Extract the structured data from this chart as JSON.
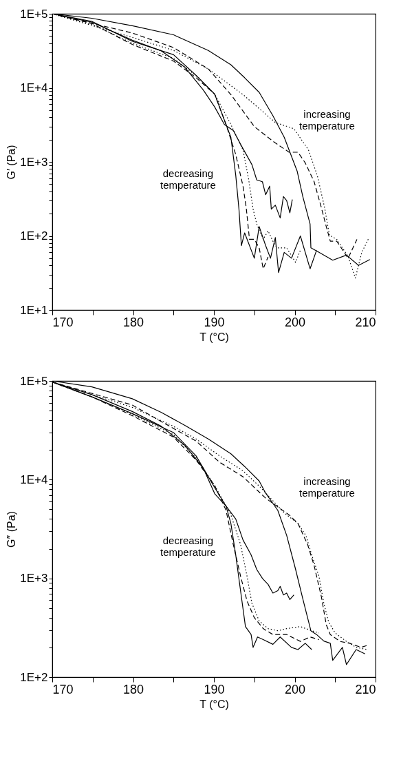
{
  "chart_data": [
    {
      "type": "line",
      "xlabel": "T (°C)",
      "ylabel": "G′ (Pa)",
      "log": "y",
      "grid": false,
      "legend": false,
      "annotations": [
        "increasing temperature",
        "decreasing temperature"
      ],
      "xlim": [
        170,
        210
      ],
      "xticks": [
        170,
        {
          "value": 175,
          "label": null
        },
        180,
        {
          "value": 185,
          "label": null
        },
        190,
        {
          "value": 195,
          "label": null
        },
        200,
        {
          "value": 205,
          "label": null
        },
        210
      ],
      "ylim": [
        10,
        100000
      ],
      "yticks": [
        {
          "value": 10,
          "label": "1E+1"
        },
        {
          "value": 20,
          "label": null
        },
        {
          "value": 30,
          "label": null
        },
        {
          "value": 40,
          "label": null
        },
        {
          "value": 50,
          "label": null
        },
        {
          "value": 60,
          "label": null
        },
        {
          "value": 70,
          "label": null
        },
        {
          "value": 80,
          "label": null
        },
        {
          "value": 90,
          "label": null
        },
        {
          "value": 100,
          "label": "1E+2"
        },
        {
          "value": 200,
          "label": null
        },
        {
          "value": 300,
          "label": null
        },
        {
          "value": 400,
          "label": null
        },
        {
          "value": 500,
          "label": null
        },
        {
          "value": 600,
          "label": null
        },
        {
          "value": 700,
          "label": null
        },
        {
          "value": 800,
          "label": null
        },
        {
          "value": 900,
          "label": null
        },
        {
          "value": 1000,
          "label": "1E+3"
        },
        {
          "value": 2000,
          "label": null
        },
        {
          "value": 3000,
          "label": null
        },
        {
          "value": 4000,
          "label": null
        },
        {
          "value": 5000,
          "label": null
        },
        {
          "value": 6000,
          "label": null
        },
        {
          "value": 7000,
          "label": null
        },
        {
          "value": 8000,
          "label": null
        },
        {
          "value": 9000,
          "label": null
        },
        {
          "value": 10000,
          "label": "1E+4"
        },
        {
          "value": 20000,
          "label": null
        },
        {
          "value": 30000,
          "label": null
        },
        {
          "value": 40000,
          "label": null
        },
        {
          "value": 50000,
          "label": null
        },
        {
          "value": 60000,
          "label": null
        },
        {
          "value": 70000,
          "label": null
        },
        {
          "value": 80000,
          "label": null
        },
        {
          "value": 90000,
          "label": null
        },
        {
          "value": 100000,
          "label": "1E+5"
        }
      ],
      "series": [
        {
          "color": "#000000",
          "line_style": "solid",
          "x": [
            170,
            174.9,
            179.9,
            185,
            189.3,
            192.1,
            193.8,
            195.6,
            197.3,
            198.7,
            200.3,
            201,
            201.9,
            202,
            203,
            204.7,
            206.4,
            207.9,
            209.3
          ],
          "values": [
            100000,
            87000,
            69000,
            52000,
            32000,
            20500,
            13700,
            8700,
            4200,
            2150,
            750,
            340,
            145,
            69,
            60,
            47,
            55,
            40,
            48
          ]
        },
        {
          "color": "#000000",
          "line_style": "dotted",
          "x": [
            170,
            179.9,
            185,
            189.3,
            193.6,
            197.6,
            199.9,
            201.7,
            202.8,
            203.7,
            204.3,
            205.2,
            206.6,
            207.5,
            208.3,
            209.2
          ],
          "values": [
            100000,
            48000,
            32000,
            18000,
            8100,
            3400,
            2800,
            1450,
            650,
            240,
            102,
            90,
            53,
            27,
            60,
            95
          ]
        },
        {
          "color": "#000000",
          "line_style": "dashed",
          "x": [
            170,
            179.9,
            185,
            189.3,
            192.1,
            195,
            197.3,
            199.3,
            200.4,
            201.3,
            202.4,
            203.3,
            203.9,
            204.4,
            205.2,
            206.6,
            207.7
          ],
          "values": [
            100000,
            55000,
            35000,
            18000,
            8100,
            3000,
            1900,
            1350,
            1350,
            970,
            540,
            240,
            134,
            85,
            85,
            50,
            90
          ]
        },
        {
          "color": "#000000",
          "line_style": "solid",
          "x": [
            170,
            174.9,
            179.9,
            183.5,
            186.4,
            188.7,
            190.1,
            191.3,
            192.4,
            193.4,
            194.7,
            195.3,
            196,
            196.4,
            196.9,
            197.1,
            197.6,
            198.2,
            198.6,
            199,
            199.4,
            199.7
          ],
          "values": [
            100000,
            77000,
            44000,
            31500,
            19000,
            9300,
            5500,
            3200,
            2650,
            1650,
            920,
            570,
            540,
            360,
            470,
            230,
            260,
            175,
            340,
            300,
            205,
            310
          ]
        },
        {
          "color": "#000000",
          "line_style": "solid",
          "x": [
            170,
            174.9,
            179.9,
            185,
            187.8,
            190.1,
            191.5,
            192.1,
            192.7,
            193.1,
            193.4,
            193.8,
            195,
            195.6,
            196.4,
            197,
            197.6,
            198,
            198.7,
            199.6,
            200.7,
            201.9,
            202.7
          ],
          "values": [
            100000,
            79000,
            42500,
            28000,
            14700,
            8200,
            3200,
            2150,
            660,
            230,
            74,
            110,
            50,
            134,
            74,
            50,
            95,
            32,
            60,
            50,
            100,
            36,
            64
          ]
        },
        {
          "color": "#000000",
          "line_style": "dashed",
          "x": [
            170,
            174.9,
            179.9,
            185,
            187.8,
            190.1,
            191.5,
            192.7,
            193.6,
            194,
            194.4,
            195,
            195.6,
            196.1,
            196.7
          ],
          "values": [
            100000,
            74000,
            38500,
            23000,
            13700,
            8200,
            3200,
            1260,
            470,
            240,
            90,
            90,
            69,
            36,
            52
          ]
        },
        {
          "color": "#000000",
          "line_style": "dotted",
          "x": [
            170,
            174.9,
            179.9,
            185,
            188.1,
            190.1,
            192.1,
            193.6,
            194.3,
            194.85,
            195.3,
            196.1,
            196.7,
            197.3,
            197.8,
            199,
            200.1,
            200.7
          ],
          "values": [
            100000,
            72000,
            40000,
            25000,
            13700,
            8200,
            3200,
            1450,
            580,
            230,
            145,
            90,
            117,
            85,
            69,
            69,
            44,
            64
          ]
        }
      ]
    },
    {
      "type": "line",
      "xlabel": "T (°C)",
      "ylabel": "G″ (Pa)",
      "log": "y",
      "grid": false,
      "legend": false,
      "annotations": [
        "increasing temperature",
        "decreasing temperature"
      ],
      "xlim": [
        170,
        210
      ],
      "xticks": [
        170,
        {
          "value": 175,
          "label": null
        },
        180,
        {
          "value": 185,
          "label": null
        },
        190,
        {
          "value": 195,
          "label": null
        },
        200,
        {
          "value": 205,
          "label": null
        },
        210
      ],
      "ylim": [
        100,
        100000
      ],
      "yticks": [
        {
          "value": 100,
          "label": "1E+2"
        },
        {
          "value": 200,
          "label": null
        },
        {
          "value": 300,
          "label": null
        },
        {
          "value": 400,
          "label": null
        },
        {
          "value": 500,
          "label": null
        },
        {
          "value": 600,
          "label": null
        },
        {
          "value": 700,
          "label": null
        },
        {
          "value": 800,
          "label": null
        },
        {
          "value": 900,
          "label": null
        },
        {
          "value": 1000,
          "label": "1E+3"
        },
        {
          "value": 2000,
          "label": null
        },
        {
          "value": 3000,
          "label": null
        },
        {
          "value": 4000,
          "label": null
        },
        {
          "value": 5000,
          "label": null
        },
        {
          "value": 6000,
          "label": null
        },
        {
          "value": 7000,
          "label": null
        },
        {
          "value": 8000,
          "label": null
        },
        {
          "value": 9000,
          "label": null
        },
        {
          "value": 10000,
          "label": "1E+4"
        },
        {
          "value": 20000,
          "label": null
        },
        {
          "value": 30000,
          "label": null
        },
        {
          "value": 40000,
          "label": null
        },
        {
          "value": 50000,
          "label": null
        },
        {
          "value": 60000,
          "label": null
        },
        {
          "value": 70000,
          "label": null
        },
        {
          "value": 80000,
          "label": null
        },
        {
          "value": 90000,
          "label": null
        },
        {
          "value": 100000,
          "label": "1E+5"
        }
      ],
      "series": [
        {
          "color": "#000000",
          "line_style": "solid",
          "x": [
            170,
            174.9,
            179.9,
            183.5,
            186.4,
            189.3,
            192.1,
            193.8,
            195.6,
            196.4,
            197.9,
            199,
            200.1,
            201,
            202,
            202.7,
            203.6,
            204.4,
            204.7,
            205.9,
            206.4,
            207.6,
            208.7
          ],
          "values": [
            100000,
            87000,
            66000,
            48000,
            35500,
            25800,
            18300,
            13600,
            9700,
            7300,
            4900,
            2730,
            1240,
            620,
            295,
            270,
            232,
            220,
            148,
            200,
            134,
            190,
            172
          ]
        },
        {
          "color": "#000000",
          "line_style": "dotted",
          "x": [
            170,
            179.9,
            185,
            187.8,
            190.7,
            193.6,
            195.8,
            197,
            198.7,
            200.4,
            201.4,
            202.1,
            203,
            203.6,
            204.2,
            205,
            206.4,
            207.6,
            209
          ],
          "values": [
            97500,
            54000,
            34700,
            25800,
            17400,
            12300,
            8300,
            6500,
            4600,
            3600,
            2700,
            1730,
            1050,
            560,
            360,
            280,
            230,
            200,
            190
          ]
        },
        {
          "color": "#000000",
          "line_style": "dashed",
          "x": [
            170,
            179.9,
            185,
            187.8,
            190.7,
            193.6,
            196.4,
            197.9,
            199.3,
            200.4,
            201.6,
            202.4,
            203.3,
            203.9,
            204.4,
            205.6,
            206.8,
            208.2,
            209
          ],
          "values": [
            97500,
            57000,
            33000,
            24600,
            15000,
            10700,
            6500,
            5300,
            4400,
            3600,
            2200,
            1350,
            650,
            340,
            270,
            230,
            220,
            200,
            210
          ]
        },
        {
          "color": "#000000",
          "line_style": "solid",
          "x": [
            170,
            174.9,
            179.9,
            183.5,
            186.4,
            188.7,
            190.1,
            191.5,
            192.7,
            193.6,
            194.6,
            195.3,
            196,
            196.7,
            197.3,
            197.9,
            198.2,
            198.6,
            199,
            199.4,
            199.9
          ],
          "values": [
            97500,
            72700,
            49000,
            34700,
            22300,
            13000,
            7200,
            5400,
            4000,
            2450,
            1730,
            1230,
            1000,
            870,
            710,
            750,
            830,
            680,
            710,
            610,
            680
          ]
        },
        {
          "color": "#000000",
          "line_style": "solid",
          "x": [
            170,
            174.9,
            179.9,
            185,
            187.8,
            190.1,
            191.5,
            192.1,
            192.7,
            193.4,
            193.9,
            194.6,
            194.85,
            195.4,
            196.1,
            197.3,
            198.2,
            199.6,
            200.4,
            201.3,
            202.1
          ],
          "values": [
            97500,
            69000,
            46700,
            30000,
            17400,
            8300,
            5400,
            3600,
            1730,
            650,
            325,
            270,
            200,
            255,
            240,
            215,
            255,
            200,
            190,
            220,
            190
          ]
        },
        {
          "color": "#000000",
          "line_style": "dashed",
          "x": [
            170,
            174.9,
            179.9,
            185,
            187.8,
            190.1,
            191.5,
            192.4,
            193.3,
            194.1,
            195,
            196.1,
            197.3,
            199,
            200.7,
            201.9,
            203
          ],
          "values": [
            97500,
            69000,
            44500,
            27000,
            15800,
            8700,
            4900,
            2200,
            1050,
            590,
            400,
            310,
            270,
            270,
            230,
            255,
            240
          ]
        },
        {
          "color": "#000000",
          "line_style": "dotted",
          "x": [
            170,
            174.9,
            179.9,
            185,
            187.8,
            190.1,
            192.1,
            193.3,
            194.1,
            194.7,
            195.6,
            196.7,
            197.9,
            199,
            200.7,
            202.1,
            203
          ],
          "values": [
            97500,
            69000,
            46000,
            28500,
            16600,
            8700,
            4400,
            2200,
            1050,
            560,
            370,
            310,
            295,
            310,
            325,
            295,
            280
          ]
        }
      ]
    }
  ]
}
